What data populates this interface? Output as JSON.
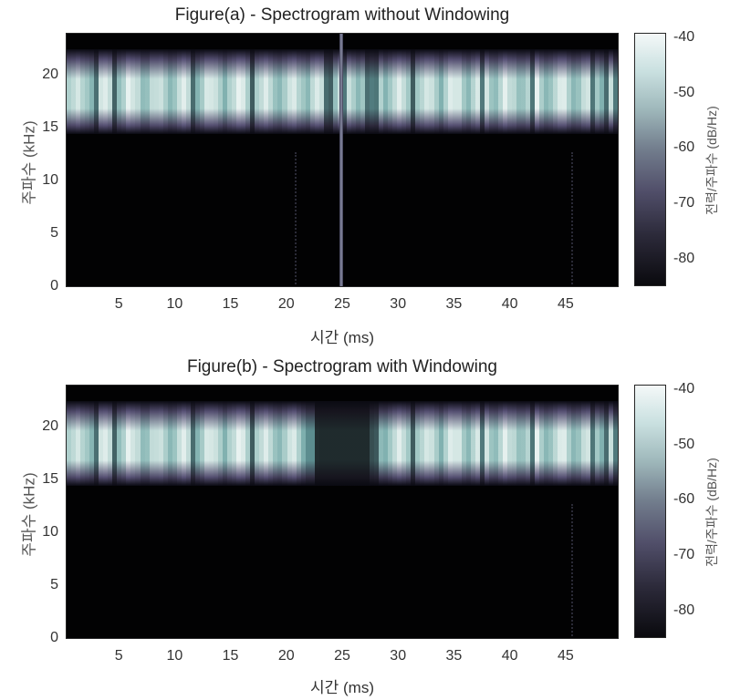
{
  "chart_data": [
    {
      "type": "heatmap",
      "title": "Figure(a) - Spectrogram without Windowing",
      "xlabel": "시간 (ms)",
      "ylabel": "주파수 (kHz)",
      "colorbar_label": "전력/주파수 (dB/Hz)",
      "xlim": [
        0.25,
        49.75
      ],
      "ylim": [
        0,
        24
      ],
      "xticks": [
        5,
        10,
        15,
        20,
        25,
        30,
        35,
        40,
        45
      ],
      "yticks": [
        0,
        5,
        10,
        15,
        20
      ],
      "clim": [
        -85,
        -39
      ],
      "cticks": [
        -40,
        -50,
        -60,
        -70,
        -80
      ],
      "colormap": "bone",
      "energy_band_khz": [
        14.5,
        22.5
      ],
      "background_db": -85,
      "features": [
        {
          "type": "broadband_vertical_line",
          "time_ms": 25
        },
        {
          "type": "faint_dotted_lines",
          "time_ms": [
            17.5,
            42.5
          ]
        }
      ]
    },
    {
      "type": "heatmap",
      "title": "Figure(b) - Spectrogram with Windowing",
      "xlabel": "시간 (ms)",
      "ylabel": "주파수 (kHz)",
      "colorbar_label": "전력/주파수 (dB/Hz)",
      "xlim": [
        0.25,
        49.75
      ],
      "ylim": [
        0,
        24
      ],
      "xticks": [
        5,
        10,
        15,
        20,
        25,
        30,
        35,
        40,
        45
      ],
      "yticks": [
        0,
        5,
        10,
        15,
        20
      ],
      "clim": [
        -85,
        -39
      ],
      "cticks": [
        -40,
        -50,
        -60,
        -70,
        -80
      ],
      "colormap": "bone",
      "energy_band_khz": [
        14.5,
        22.5
      ],
      "background_db": -85,
      "features": [
        {
          "type": "attenuated_gap",
          "time_ms": [
            22.5,
            27.5
          ]
        },
        {
          "type": "faint_dotted_lines",
          "time_ms": [
            42.5
          ]
        }
      ]
    }
  ],
  "figures": {
    "a": {
      "title": "Figure(a) - Spectrogram without Windowing"
    },
    "b": {
      "title": "Figure(b) - Spectrogram with Windowing"
    }
  },
  "axes": {
    "xlabel": "시간 (ms)",
    "ylabel": "주파수 (kHz)",
    "colorbar_label": "전력/주파수 (dB/Hz)",
    "xticks": [
      "5",
      "10",
      "15",
      "20",
      "25",
      "30",
      "35",
      "40",
      "45"
    ],
    "yticks": [
      "20",
      "15",
      "10",
      "5",
      "0"
    ],
    "cticks": [
      "-40",
      "-50",
      "-60",
      "-70",
      "-80"
    ]
  }
}
